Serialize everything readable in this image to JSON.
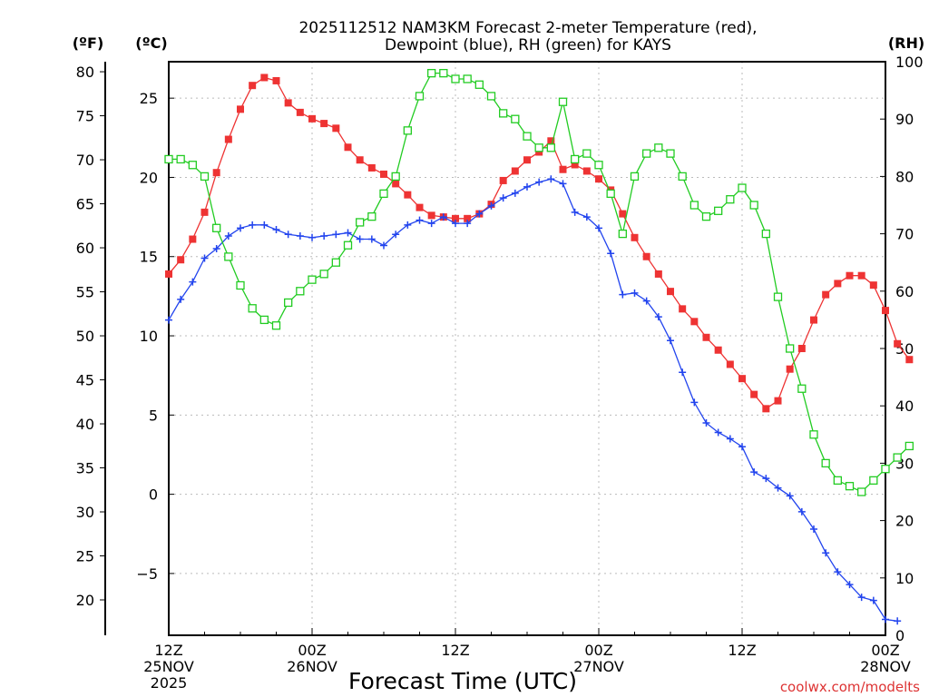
{
  "chart_data": {
    "type": "line",
    "title_line1": "2025112512 NAM3KM Forecast 2-meter Temperature (red),",
    "title_line2": "Dewpoint (blue), RH (green) for KAYS",
    "xlabel": "Forecast Time (UTC)",
    "credit": "coolwx.com/modelts",
    "unit_f": "(ºF)",
    "unit_c": "(ºC)",
    "unit_rh": "(RH)",
    "x_units": "forecast hour",
    "xlim": [
      0,
      60
    ],
    "c_ylim": [
      -8.9,
      27.3
    ],
    "rh_ylim": [
      0,
      100
    ],
    "f_ticks": [
      "80",
      "75",
      "70",
      "65",
      "60",
      "55",
      "50",
      "45",
      "40",
      "35",
      "30",
      "25",
      "20"
    ],
    "c_ticks": [
      "25",
      "20",
      "15",
      "10",
      "5",
      "0",
      "−5"
    ],
    "rh_ticks": [
      "100",
      "90",
      "80",
      "70",
      "60",
      "50",
      "40",
      "30",
      "20",
      "10",
      "0"
    ],
    "x_ticks": [
      {
        "hour": 0,
        "line1": "12Z",
        "line2": "25NOV",
        "line3": "2025"
      },
      {
        "hour": 12,
        "line1": "00Z",
        "line2": "26NOV",
        "line3": ""
      },
      {
        "hour": 24,
        "line1": "12Z",
        "line2": "",
        "line3": ""
      },
      {
        "hour": 36,
        "line1": "00Z",
        "line2": "27NOV",
        "line3": ""
      },
      {
        "hour": 48,
        "line1": "12Z",
        "line2": "",
        "line3": ""
      },
      {
        "hour": 60,
        "line1": "00Z",
        "line2": "28NOV",
        "line3": ""
      }
    ],
    "series": [
      {
        "name": "2-meter Temperature",
        "axis": "celsius",
        "color": "#ee3333",
        "marker": "filled-square",
        "values": [
          13.9,
          14.8,
          16.1,
          17.8,
          20.3,
          22.4,
          24.3,
          25.8,
          26.3,
          26.1,
          24.7,
          24.1,
          23.7,
          23.4,
          23.1,
          21.9,
          21.1,
          20.6,
          20.2,
          19.6,
          18.9,
          18.1,
          17.6,
          17.5,
          17.4,
          17.4,
          17.7,
          18.3,
          19.8,
          20.4,
          21.1,
          21.6,
          22.3,
          20.5,
          20.8,
          20.4,
          19.9,
          19.2,
          17.7,
          16.2,
          15.0,
          13.9,
          12.8,
          11.7,
          10.9,
          9.9,
          9.1,
          8.2,
          7.3,
          6.3,
          5.4,
          5.9,
          7.9,
          9.2,
          11.0,
          12.6,
          13.3,
          13.8,
          13.8,
          13.2,
          11.6,
          9.5,
          8.5
        ]
      },
      {
        "name": "Dewpoint",
        "axis": "celsius",
        "color": "#2244ee",
        "marker": "plus",
        "values": [
          11.0,
          12.3,
          13.4,
          14.9,
          15.5,
          16.3,
          16.8,
          17.0,
          17.0,
          16.7,
          16.4,
          16.3,
          16.2,
          16.3,
          16.4,
          16.5,
          16.1,
          16.1,
          15.7,
          16.4,
          17.0,
          17.3,
          17.1,
          17.5,
          17.1,
          17.1,
          17.7,
          18.2,
          18.7,
          19.0,
          19.4,
          19.7,
          19.9,
          19.6,
          17.8,
          17.5,
          16.8,
          15.2,
          12.6,
          12.7,
          12.2,
          11.2,
          9.7,
          7.7,
          5.8,
          4.5,
          3.9,
          3.5,
          3.0,
          1.4,
          1.0,
          0.4,
          -0.1,
          -1.1,
          -2.2,
          -3.7,
          -4.9,
          -5.7,
          -6.5,
          -6.7,
          -7.9,
          -8.0,
          null
        ]
      },
      {
        "name": "Relative Humidity",
        "axis": "rh",
        "color": "#22cc22",
        "marker": "open-square",
        "values": [
          83,
          83,
          82,
          80,
          71,
          66,
          61,
          57,
          55,
          54,
          58,
          60,
          62,
          63,
          65,
          68,
          72,
          73,
          77,
          80,
          88,
          94,
          98,
          98,
          97,
          97,
          96,
          94,
          91,
          90,
          87,
          85,
          85,
          93,
          83,
          84,
          82,
          77,
          70,
          80,
          84,
          85,
          84,
          80,
          75,
          73,
          74,
          76,
          78,
          75,
          70,
          59,
          50,
          43,
          35,
          30,
          27,
          26,
          25,
          27,
          29,
          31,
          33
        ]
      }
    ]
  }
}
